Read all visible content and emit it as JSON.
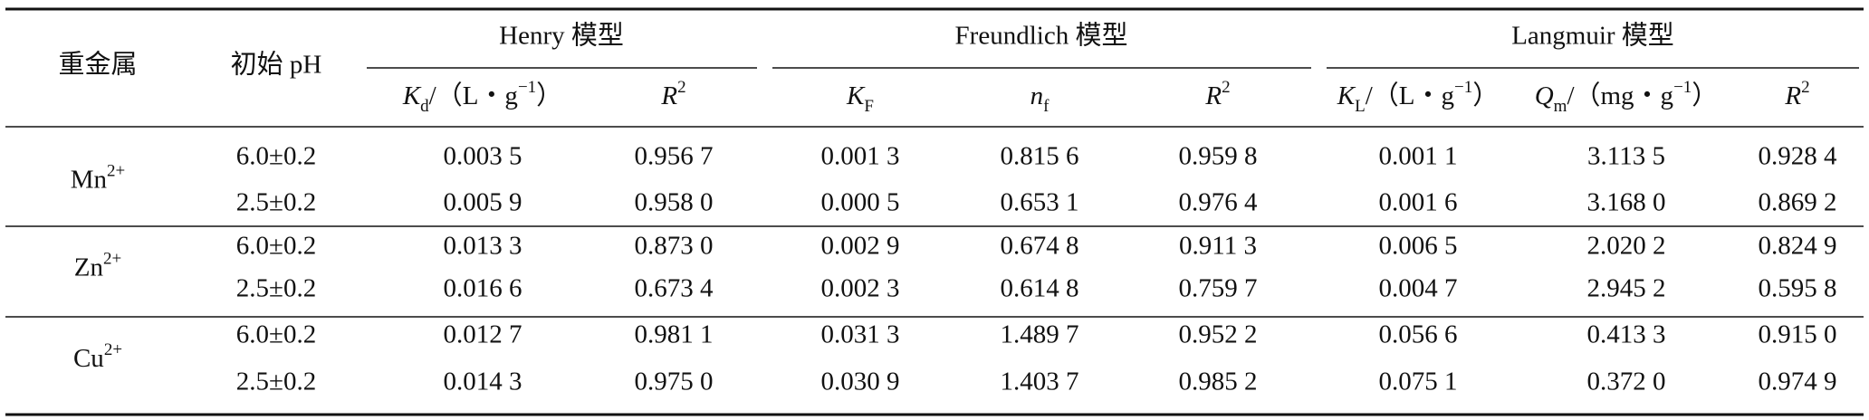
{
  "table": {
    "columns": {
      "metal": "重金属",
      "ph": "初始 pH"
    },
    "groups": [
      {
        "label": "Henry 模型"
      },
      {
        "label": "Freundlich 模型"
      },
      {
        "label": "Langmuir 模型"
      }
    ],
    "subheaders": [
      [
        {
          "text": "K",
          "style": "italic"
        },
        {
          "text": "d",
          "style": "sub"
        },
        {
          "text": "/（L・g",
          "style": "normal"
        },
        {
          "text": "−1",
          "style": "sup"
        },
        {
          "text": "）",
          "style": "normal"
        }
      ],
      [
        {
          "text": "R",
          "style": "italic"
        },
        {
          "text": "2",
          "style": "sup"
        }
      ],
      [
        {
          "text": "K",
          "style": "italic"
        },
        {
          "text": "F",
          "style": "sub"
        }
      ],
      [
        {
          "text": "n",
          "style": "italic"
        },
        {
          "text": "f",
          "style": "sub"
        }
      ],
      [
        {
          "text": "R",
          "style": "italic"
        },
        {
          "text": "2",
          "style": "sup"
        }
      ],
      [
        {
          "text": "K",
          "style": "italic"
        },
        {
          "text": "L",
          "style": "sub"
        },
        {
          "text": "/（L・g",
          "style": "normal"
        },
        {
          "text": "−1",
          "style": "sup"
        },
        {
          "text": "）",
          "style": "normal"
        }
      ],
      [
        {
          "text": "Q",
          "style": "italic"
        },
        {
          "text": "m",
          "style": "sub"
        },
        {
          "text": "/（mg・g",
          "style": "normal"
        },
        {
          "text": "−1",
          "style": "sup"
        },
        {
          "text": "）",
          "style": "normal"
        }
      ],
      [
        {
          "text": "R",
          "style": "italic"
        },
        {
          "text": "2",
          "style": "sup"
        }
      ]
    ],
    "rows": [
      {
        "metal": [
          {
            "text": "Mn",
            "style": "normal"
          },
          {
            "text": "2+",
            "style": "sup"
          }
        ],
        "entries": [
          {
            "ph": "6.0±0.2",
            "values": [
              "0.003 5",
              "0.956 7",
              "0.001 3",
              "0.815 6",
              "0.959 8",
              "0.001 1",
              "3.113 5",
              "0.928 4"
            ]
          },
          {
            "ph": "2.5±0.2",
            "values": [
              "0.005 9",
              "0.958 0",
              "0.000 5",
              "0.653 1",
              "0.976 4",
              "0.001 6",
              "3.168 0",
              "0.869 2"
            ]
          }
        ]
      },
      {
        "metal": [
          {
            "text": "Zn",
            "style": "normal"
          },
          {
            "text": "2+",
            "style": "sup"
          }
        ],
        "entries": [
          {
            "ph": "6.0±0.2",
            "values": [
              "0.013 3",
              "0.873 0",
              "0.002 9",
              "0.674 8",
              "0.911 3",
              "0.006 5",
              "2.020 2",
              "0.824 9"
            ]
          },
          {
            "ph": "2.5±0.2",
            "values": [
              "0.016 6",
              "0.673 4",
              "0.002 3",
              "0.614 8",
              "0.759 7",
              "0.004 7",
              "2.945 2",
              "0.595 8"
            ]
          }
        ]
      },
      {
        "metal": [
          {
            "text": "Cu",
            "style": "normal"
          },
          {
            "text": "2+",
            "style": "sup"
          }
        ],
        "entries": [
          {
            "ph": "6.0±0.2",
            "values": [
              "0.012 7",
              "0.981 1",
              "0.031 3",
              "1.489 7",
              "0.952 2",
              "0.056 6",
              "0.413 3",
              "0.915 0"
            ]
          },
          {
            "ph": "2.5±0.2",
            "values": [
              "0.014 3",
              "0.975 0",
              "0.030 9",
              "1.403 7",
              "0.985 2",
              "0.075 1",
              "0.372 0",
              "0.974 9"
            ]
          }
        ]
      }
    ]
  }
}
